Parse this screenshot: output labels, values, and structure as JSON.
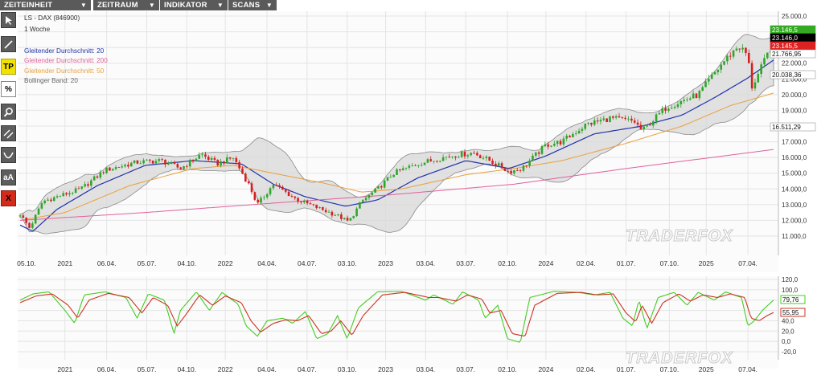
{
  "menu": {
    "items": [
      {
        "label": "ZEITEINHEIT"
      },
      {
        "label": "ZEITRAUM"
      },
      {
        "label": "INDIKATOR"
      },
      {
        "label": "SCANS"
      }
    ],
    "caret": "▼"
  },
  "toolbar": {
    "tools": [
      {
        "icon": "cursor-icon"
      },
      {
        "icon": "line-icon"
      },
      {
        "label": "TP"
      },
      {
        "label": "%"
      },
      {
        "icon": "zoom-icon"
      },
      {
        "icon": "parallel-lines-icon"
      },
      {
        "icon": "curve-icon"
      },
      {
        "label": "aA"
      },
      {
        "label": "X"
      }
    ]
  },
  "legend": {
    "instrument": "LS - DAX (846900)",
    "interval": "1 Woche",
    "ma20": "Gleitender Durchschnitt: 20",
    "ma200": "Gleitender Durchschnitt: 200",
    "ma50": "Gleitender Durchschnitt: 50",
    "bollinger": "Bollinger Band: 20"
  },
  "watermark": "TRADERFOX",
  "colors": {
    "up": "#2fa52b",
    "down": "#d42020",
    "ma20": "#2233aa",
    "ma200": "#e0609a",
    "ma50": "#e8a03c",
    "band_fill": "#d8d8d8",
    "stoch_k": "#44cc22",
    "stoch_d": "#cc3322"
  },
  "chart_data": [
    {
      "type": "candlestick",
      "y_axis": {
        "range": [
          10000,
          25000
        ],
        "ticks": [
          "25.000,0",
          "24.000,0",
          "23.000,0",
          "22.000,0",
          "21.000,0",
          "20.000,0",
          "19.000,0",
          "18.000,0",
          "17.000,0",
          "16.000,0",
          "15.000,0",
          "14.000,0",
          "13.000,0",
          "12.000,0",
          "11.000,0"
        ]
      },
      "x_axis": {
        "ticks": [
          "05.10.",
          "2021",
          "06.04.",
          "05.07.",
          "04.10.",
          "2022",
          "04.04.",
          "04.07.",
          "03.10.",
          "2023",
          "03.04.",
          "03.07.",
          "02.10.",
          "2024",
          "02.04.",
          "01.07.",
          "07.10.",
          "2025",
          "07.04."
        ]
      },
      "value_tags": [
        {
          "label": "23.146,5",
          "value": 23146.5,
          "color": "#33aa22"
        },
        {
          "label": "23.146,0",
          "value": 23146.0,
          "color": "#000000"
        },
        {
          "label": "23.145,5",
          "value": 23145.5,
          "color": "#dd2222"
        },
        {
          "label": "21.766,95",
          "value": 21766.95,
          "color": "#ffffff"
        },
        {
          "label": "20.038,36",
          "value": 20038.36,
          "color": "#ffffff"
        },
        {
          "label": "16.511,29",
          "value": 16511.29,
          "color": "#ffffff"
        }
      ],
      "anchors": [
        [
          2020.72,
          12400
        ],
        [
          2020.78,
          11500
        ],
        [
          2020.86,
          13200
        ],
        [
          2020.95,
          13500
        ],
        [
          2021.1,
          14000
        ],
        [
          2021.25,
          15200
        ],
        [
          2021.45,
          15700
        ],
        [
          2021.6,
          15800
        ],
        [
          2021.72,
          15300
        ],
        [
          2021.85,
          16200
        ],
        [
          2021.95,
          15600
        ],
        [
          2022.05,
          16000
        ],
        [
          2022.15,
          14200
        ],
        [
          2022.2,
          13000
        ],
        [
          2022.3,
          14300
        ],
        [
          2022.45,
          13300
        ],
        [
          2022.55,
          12900
        ],
        [
          2022.7,
          12300
        ],
        [
          2022.77,
          11900
        ],
        [
          2022.85,
          13200
        ],
        [
          2022.95,
          14000
        ],
        [
          2023.05,
          15000
        ],
        [
          2023.2,
          15600
        ],
        [
          2023.4,
          16100
        ],
        [
          2023.55,
          16300
        ],
        [
          2023.65,
          15800
        ],
        [
          2023.77,
          15100
        ],
        [
          2023.85,
          15300
        ],
        [
          2024.0,
          16800
        ],
        [
          2024.1,
          17000
        ],
        [
          2024.25,
          18100
        ],
        [
          2024.4,
          18500
        ],
        [
          2024.55,
          18300
        ],
        [
          2024.6,
          17700
        ],
        [
          2024.75,
          19200
        ],
        [
          2024.95,
          20000
        ],
        [
          2025.1,
          22000
        ],
        [
          2025.2,
          23100
        ],
        [
          2025.26,
          22500
        ],
        [
          2025.28,
          20400
        ],
        [
          2025.32,
          21200
        ],
        [
          2025.42,
          23400
        ]
      ],
      "series": [
        {
          "name": "Gleitender Durchschnitt: 20",
          "anchors": [
            [
              2020.72,
              11700
            ],
            [
              2020.8,
              11300
            ],
            [
              2020.95,
              12700
            ],
            [
              2021.2,
              14200
            ],
            [
              2021.5,
              15500
            ],
            [
              2021.8,
              15800
            ],
            [
              2022.1,
              15600
            ],
            [
              2022.3,
              14300
            ],
            [
              2022.5,
              13500
            ],
            [
              2022.75,
              12900
            ],
            [
              2022.95,
              13300
            ],
            [
              2023.2,
              14700
            ],
            [
              2023.5,
              15800
            ],
            [
              2023.77,
              15300
            ],
            [
              2024.0,
              16100
            ],
            [
              2024.3,
              17500
            ],
            [
              2024.6,
              18000
            ],
            [
              2024.85,
              18700
            ],
            [
              2025.05,
              19800
            ],
            [
              2025.25,
              21000
            ],
            [
              2025.42,
              22200
            ]
          ]
        },
        {
          "name": "Gleitender Durchschnitt: 50",
          "anchors": [
            [
              2020.72,
              12000
            ],
            [
              2021.0,
              12500
            ],
            [
              2021.4,
              14200
            ],
            [
              2021.8,
              15300
            ],
            [
              2022.05,
              15500
            ],
            [
              2022.3,
              15000
            ],
            [
              2022.6,
              14400
            ],
            [
              2022.85,
              13800
            ],
            [
              2023.1,
              14000
            ],
            [
              2023.5,
              14900
            ],
            [
              2023.8,
              15300
            ],
            [
              2024.1,
              15800
            ],
            [
              2024.5,
              16900
            ],
            [
              2024.85,
              18000
            ],
            [
              2025.15,
              19300
            ],
            [
              2025.42,
              20100
            ]
          ]
        },
        {
          "name": "Gleitender Durchschnitt: 200",
          "anchors": [
            [
              2020.72,
              12000
            ],
            [
              2021.5,
              12500
            ],
            [
              2022.3,
              13100
            ],
            [
              2023.0,
              13600
            ],
            [
              2023.8,
              14300
            ],
            [
              2024.5,
              15300
            ],
            [
              2025.42,
              16511
            ]
          ]
        }
      ]
    },
    {
      "type": "line",
      "y_axis": {
        "range": [
          -20,
          120
        ],
        "ticks": [
          "120,0",
          "100,0",
          "80,0",
          "60,0",
          "40,0",
          "20,0",
          "0,0",
          "-20,0"
        ]
      },
      "x_axis": {
        "ticks": [
          "2021",
          "06.04.",
          "05.07.",
          "04.10.",
          "2022",
          "04.04.",
          "04.07.",
          "03.10.",
          "2023",
          "03.04.",
          "03.07.",
          "02.10.",
          "2024",
          "02.04.",
          "01.07.",
          "07.10.",
          "2025",
          "07.04."
        ]
      },
      "value_tags": [
        {
          "label": "79,76",
          "value": 79.76,
          "color": "#44cc22"
        },
        {
          "label": "55,95",
          "value": 55.95,
          "color": "#cc3322"
        }
      ],
      "k_anchors": [
        [
          2020.72,
          80
        ],
        [
          2020.8,
          92
        ],
        [
          2020.9,
          96
        ],
        [
          2021.0,
          60
        ],
        [
          2021.06,
          35
        ],
        [
          2021.12,
          90
        ],
        [
          2021.25,
          96
        ],
        [
          2021.38,
          85
        ],
        [
          2021.45,
          45
        ],
        [
          2021.52,
          92
        ],
        [
          2021.62,
          80
        ],
        [
          2021.68,
          15
        ],
        [
          2021.72,
          60
        ],
        [
          2021.82,
          96
        ],
        [
          2021.9,
          60
        ],
        [
          2021.98,
          95
        ],
        [
          2022.08,
          72
        ],
        [
          2022.13,
          30
        ],
        [
          2022.2,
          10
        ],
        [
          2022.26,
          40
        ],
        [
          2022.36,
          45
        ],
        [
          2022.42,
          35
        ],
        [
          2022.5,
          58
        ],
        [
          2022.57,
          5
        ],
        [
          2022.64,
          15
        ],
        [
          2022.7,
          50
        ],
        [
          2022.76,
          5
        ],
        [
          2022.83,
          65
        ],
        [
          2022.95,
          96
        ],
        [
          2023.1,
          97
        ],
        [
          2023.25,
          80
        ],
        [
          2023.3,
          90
        ],
        [
          2023.42,
          72
        ],
        [
          2023.48,
          96
        ],
        [
          2023.58,
          80
        ],
        [
          2023.62,
          45
        ],
        [
          2023.7,
          70
        ],
        [
          2023.76,
          5
        ],
        [
          2023.84,
          -2
        ],
        [
          2023.9,
          85
        ],
        [
          2024.05,
          97
        ],
        [
          2024.2,
          95
        ],
        [
          2024.3,
          90
        ],
        [
          2024.4,
          95
        ],
        [
          2024.48,
          45
        ],
        [
          2024.54,
          30
        ],
        [
          2024.58,
          80
        ],
        [
          2024.63,
          25
        ],
        [
          2024.7,
          85
        ],
        [
          2024.8,
          95
        ],
        [
          2024.88,
          70
        ],
        [
          2024.95,
          95
        ],
        [
          2025.05,
          80
        ],
        [
          2025.12,
          96
        ],
        [
          2025.22,
          85
        ],
        [
          2025.26,
          30
        ],
        [
          2025.3,
          40
        ],
        [
          2025.35,
          60
        ],
        [
          2025.42,
          80
        ]
      ],
      "d_anchors": [
        [
          2020.72,
          75
        ],
        [
          2020.82,
          88
        ],
        [
          2020.92,
          92
        ],
        [
          2021.02,
          70
        ],
        [
          2021.08,
          45
        ],
        [
          2021.15,
          80
        ],
        [
          2021.27,
          93
        ],
        [
          2021.4,
          85
        ],
        [
          2021.48,
          55
        ],
        [
          2021.55,
          85
        ],
        [
          2021.64,
          70
        ],
        [
          2021.7,
          30
        ],
        [
          2021.75,
          50
        ],
        [
          2021.84,
          90
        ],
        [
          2021.92,
          70
        ],
        [
          2022.0,
          88
        ],
        [
          2022.1,
          75
        ],
        [
          2022.16,
          40
        ],
        [
          2022.22,
          18
        ],
        [
          2022.3,
          35
        ],
        [
          2022.38,
          42
        ],
        [
          2022.45,
          40
        ],
        [
          2022.52,
          50
        ],
        [
          2022.6,
          15
        ],
        [
          2022.66,
          20
        ],
        [
          2022.72,
          40
        ],
        [
          2022.79,
          12
        ],
        [
          2022.86,
          50
        ],
        [
          2022.98,
          90
        ],
        [
          2023.12,
          95
        ],
        [
          2023.27,
          85
        ],
        [
          2023.33,
          85
        ],
        [
          2023.44,
          78
        ],
        [
          2023.51,
          90
        ],
        [
          2023.6,
          82
        ],
        [
          2023.65,
          55
        ],
        [
          2023.72,
          60
        ],
        [
          2023.79,
          15
        ],
        [
          2023.87,
          10
        ],
        [
          2023.93,
          70
        ],
        [
          2024.07,
          93
        ],
        [
          2024.22,
          95
        ],
        [
          2024.32,
          90
        ],
        [
          2024.42,
          92
        ],
        [
          2024.5,
          55
        ],
        [
          2024.56,
          38
        ],
        [
          2024.6,
          70
        ],
        [
          2024.66,
          35
        ],
        [
          2024.73,
          75
        ],
        [
          2024.83,
          92
        ],
        [
          2024.9,
          78
        ],
        [
          2024.98,
          90
        ],
        [
          2025.07,
          85
        ],
        [
          2025.15,
          92
        ],
        [
          2025.24,
          85
        ],
        [
          2025.28,
          45
        ],
        [
          2025.33,
          40
        ],
        [
          2025.38,
          50
        ],
        [
          2025.42,
          56
        ]
      ]
    }
  ]
}
